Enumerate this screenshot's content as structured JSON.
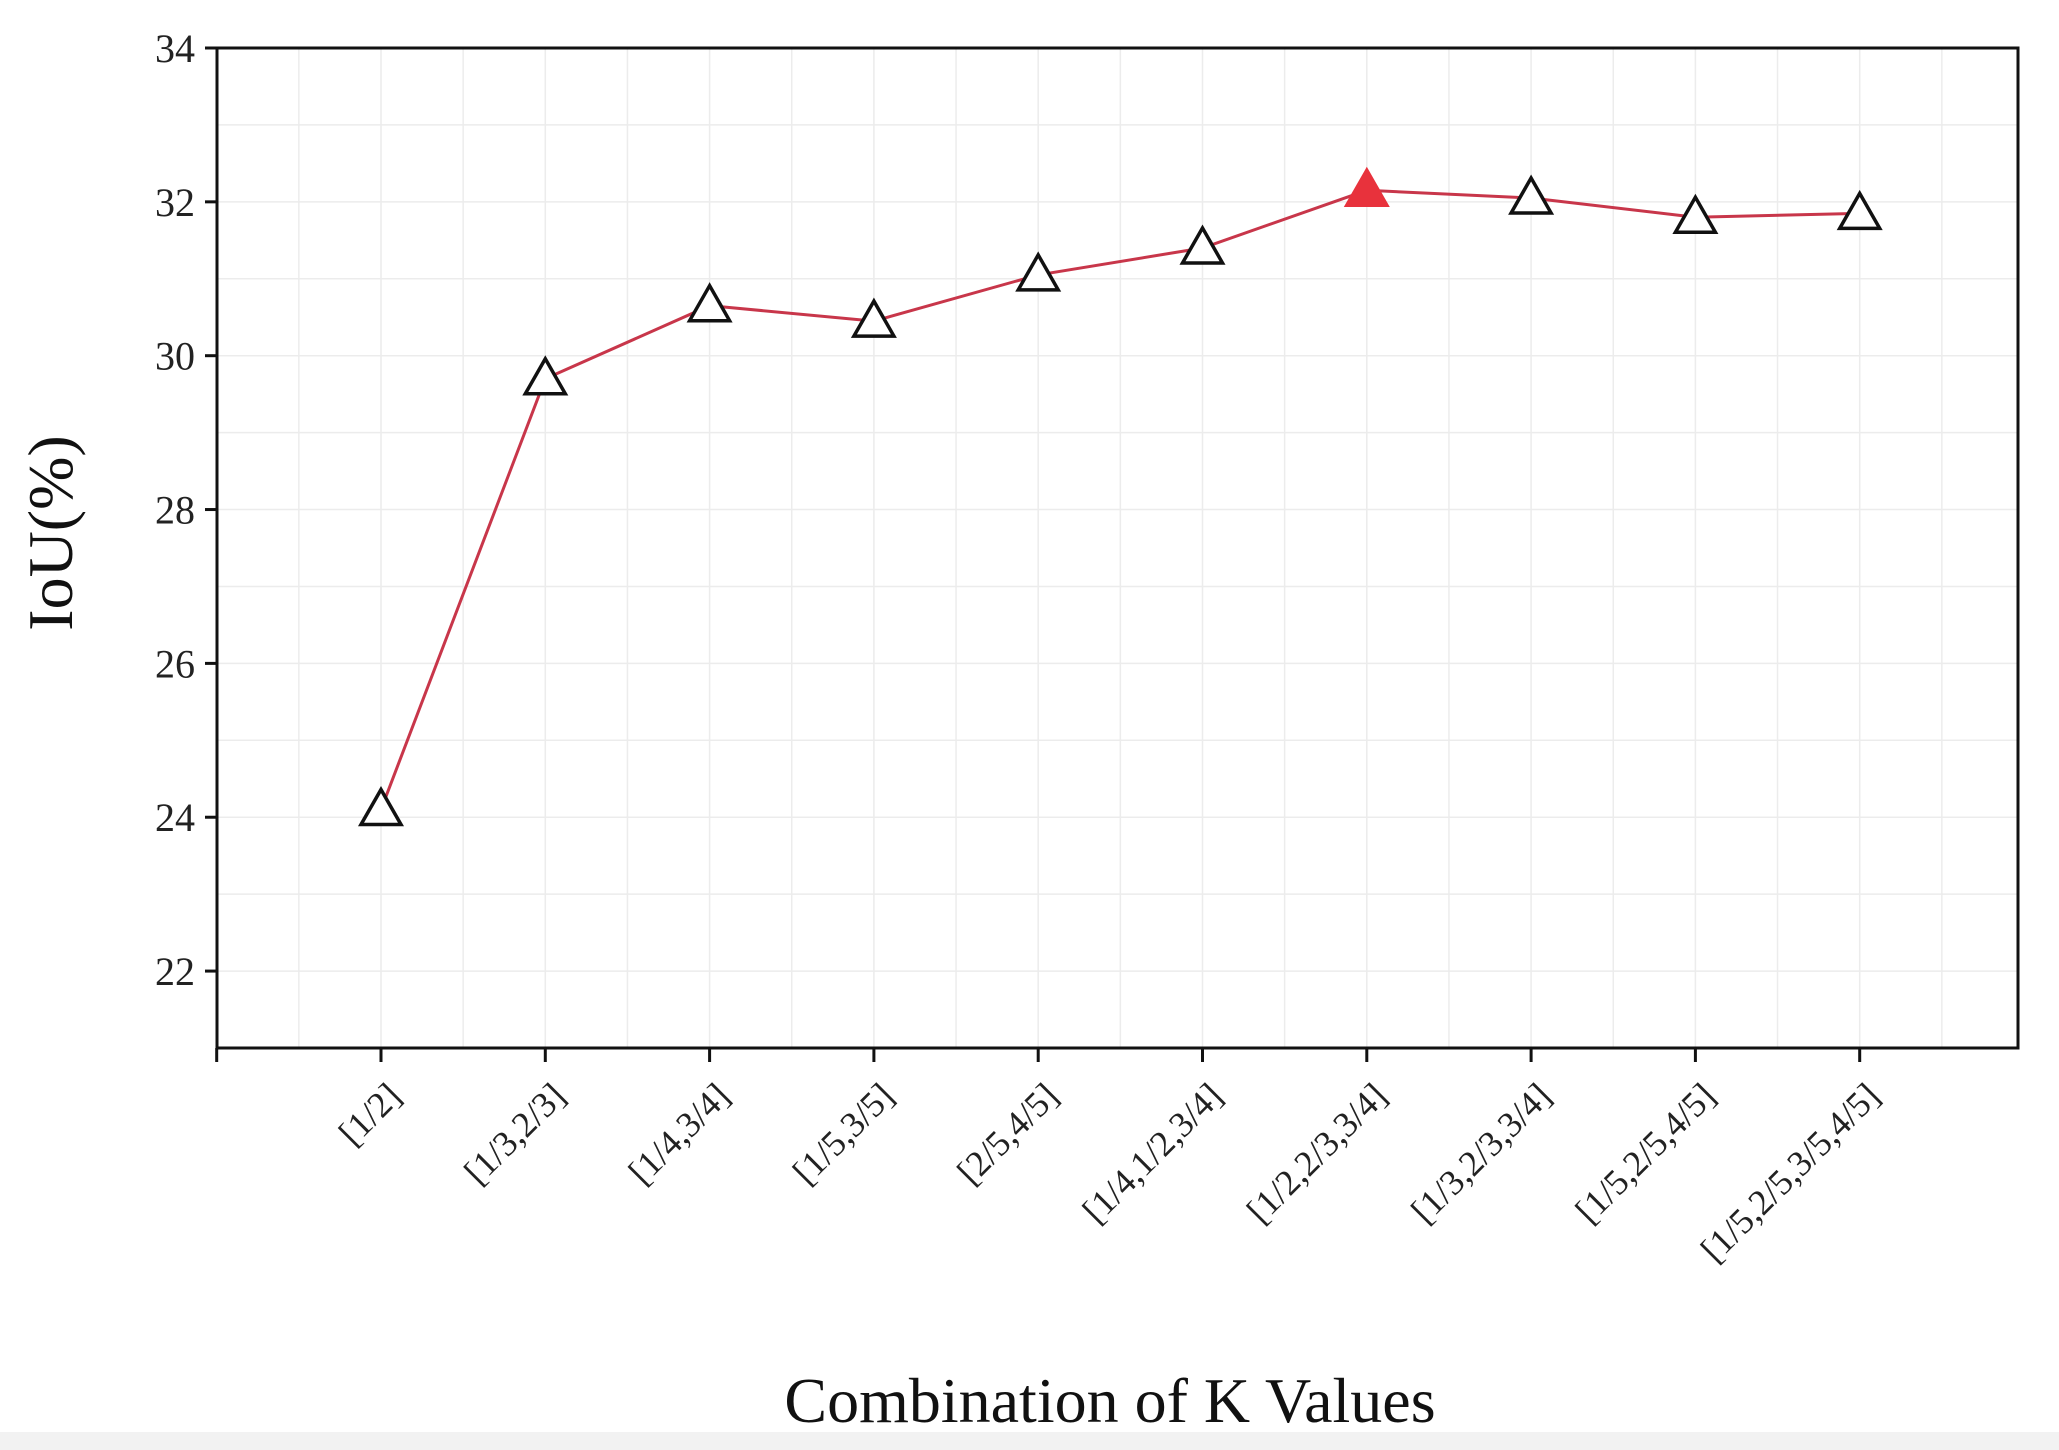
{
  "chart_data": {
    "type": "line",
    "title": "",
    "xlabel": "Combination of K Values",
    "ylabel": "IoU(%)",
    "categories": [
      "[1/2]",
      "[1/3,2/3]",
      "[1/4,3/4]",
      "[1/5,3/5]",
      "[2/5,4/5]",
      "[1/4,1/2,3/4]",
      "[1/2,2/3,3/4]",
      "[1/3,2/3,3/4]",
      "[1/5,2/5,4/5]",
      "[1/5,2/5,3/5,4/5]"
    ],
    "series": [
      {
        "name": "IoU",
        "values": [
          24.1,
          29.7,
          30.65,
          30.45,
          31.05,
          31.4,
          32.15,
          32.05,
          31.8,
          31.85
        ]
      }
    ],
    "highlight_index": 6,
    "ylim": [
      21,
      34
    ],
    "yticks": [
      22,
      24,
      26,
      28,
      30,
      32,
      34
    ],
    "grid": true,
    "legend": "none",
    "colors": {
      "line": "#c8364a",
      "marker_edge": "#111111",
      "marker_fill": "#ffffff",
      "highlight": "#e8323c",
      "grid": "#ececec",
      "axis": "#111111"
    }
  }
}
